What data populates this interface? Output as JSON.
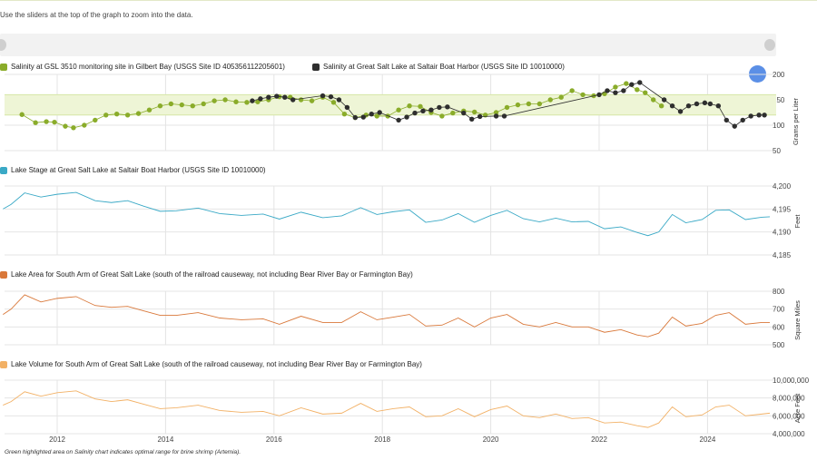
{
  "instruction": "Use the sliders at the top of the graph to zoom into the data.",
  "footnote": "Green highlighted area on Salinity chart indicates optimal range for brine shrimp (Artemia).",
  "colors": {
    "salinity_gilbert": "#8aac2a",
    "salinity_saltair": "#2e2e2e",
    "stage": "#3aa9c6",
    "area": "#d9783a",
    "volume": "#f2b166",
    "optimal_band": "#eef5d6",
    "grid": "#e4e4e4"
  },
  "x_axis": {
    "ticks": [
      "2012",
      "2014",
      "2016",
      "2018",
      "2020",
      "2022",
      "2024"
    ]
  },
  "chart_data": [
    {
      "type": "scatter",
      "title": "",
      "ylabel": "Grams per Liter",
      "ylim": [
        50,
        200
      ],
      "yticks": [
        "200",
        "150",
        "100",
        "50"
      ],
      "optimal_band": [
        120,
        160
      ],
      "series": [
        {
          "name": "Salinity at GSL 3510 monitoring site in Gilbert Bay (USGS Site ID 405356112205601)",
          "x": [
            2011.35,
            2011.6,
            2011.8,
            2011.95,
            2012.15,
            2012.3,
            2012.5,
            2012.7,
            2012.9,
            2013.1,
            2013.3,
            2013.5,
            2013.7,
            2013.9,
            2014.1,
            2014.3,
            2014.5,
            2014.7,
            2014.9,
            2015.1,
            2015.3,
            2015.5,
            2015.7,
            2015.9,
            2016.1,
            2016.3,
            2016.5,
            2016.7,
            2016.9,
            2017.1,
            2017.3,
            2017.5,
            2017.7,
            2017.9,
            2018.1,
            2018.3,
            2018.5,
            2018.7,
            2018.9,
            2019.1,
            2019.3,
            2019.5,
            2019.7,
            2019.9,
            2020.1,
            2020.3,
            2020.5,
            2020.7,
            2020.9,
            2021.1,
            2021.3,
            2021.5,
            2021.7,
            2021.9,
            2022.1,
            2022.3,
            2022.5,
            2022.7,
            2022.85,
            2023.0,
            2023.15
          ],
          "y": [
            121,
            105,
            107,
            106,
            98,
            95,
            100,
            110,
            120,
            122,
            120,
            123,
            130,
            138,
            142,
            140,
            138,
            142,
            148,
            150,
            146,
            145,
            146,
            150,
            156,
            155,
            150,
            148,
            155,
            145,
            122,
            115,
            120,
            118,
            118,
            130,
            138,
            137,
            125,
            118,
            124,
            128,
            126,
            120,
            125,
            135,
            140,
            142,
            142,
            150,
            155,
            168,
            160,
            158,
            162,
            175,
            182,
            170,
            164,
            150,
            138
          ]
        },
        {
          "name": "Salinity at Great Salt Lake at Saltair Boat Harbor (USGS Site ID 10010000)",
          "x": [
            2015.6,
            2015.75,
            2015.9,
            2016.05,
            2016.2,
            2016.35,
            2016.9,
            2017.05,
            2017.2,
            2017.35,
            2017.5,
            2017.65,
            2017.8,
            2017.95,
            2018.3,
            2018.45,
            2018.6,
            2018.75,
            2018.9,
            2019.05,
            2019.2,
            2019.5,
            2019.65,
            2019.8,
            2020.1,
            2020.25,
            2022.0,
            2022.15,
            2022.3,
            2022.45,
            2022.6,
            2022.75,
            2023.2,
            2023.35,
            2023.5,
            2023.65,
            2023.8,
            2023.95,
            2024.05,
            2024.2,
            2024.35,
            2024.5,
            2024.65,
            2024.8,
            2024.95,
            2025.05
          ],
          "y": [
            148,
            152,
            155,
            157,
            155,
            150,
            158,
            156,
            150,
            135,
            115,
            116,
            122,
            125,
            110,
            116,
            124,
            128,
            130,
            135,
            136,
            124,
            112,
            117,
            118,
            118,
            160,
            168,
            164,
            168,
            180,
            184,
            150,
            138,
            127,
            138,
            142,
            144,
            142,
            138,
            110,
            98,
            110,
            118,
            120,
            120
          ]
        }
      ]
    },
    {
      "type": "line",
      "title": "",
      "ylabel": "Feet",
      "ylim": [
        4185,
        4200
      ],
      "yticks": [
        "4,200",
        "4,195",
        "4,190",
        "4,185"
      ],
      "series": [
        {
          "name": "Lake Stage at Great Salt Lake at Saltair Boat Harbor (USGS Site ID 10010000)",
          "x": [
            2011.0,
            2011.15,
            2011.4,
            2011.7,
            2012.0,
            2012.35,
            2012.7,
            2013.0,
            2013.3,
            2013.6,
            2013.9,
            2014.2,
            2014.6,
            2015.0,
            2015.4,
            2015.8,
            2016.1,
            2016.5,
            2016.9,
            2017.25,
            2017.6,
            2017.9,
            2018.2,
            2018.5,
            2018.8,
            2019.1,
            2019.4,
            2019.7,
            2020.0,
            2020.3,
            2020.6,
            2020.9,
            2021.2,
            2021.5,
            2021.8,
            2022.1,
            2022.4,
            2022.7,
            2022.9,
            2023.1,
            2023.35,
            2023.6,
            2023.9,
            2024.15,
            2024.4,
            2024.7,
            2025.0,
            2025.15
          ],
          "y": [
            4195.0,
            4196.0,
            4198.5,
            4197.6,
            4198.2,
            4198.6,
            4196.8,
            4196.4,
            4196.8,
            4195.6,
            4194.5,
            4194.6,
            4195.2,
            4194.0,
            4193.6,
            4193.9,
            4192.8,
            4194.3,
            4193.1,
            4193.5,
            4195.3,
            4193.8,
            4194.4,
            4194.8,
            4192.1,
            4192.6,
            4194.0,
            4192.1,
            4193.6,
            4194.7,
            4192.9,
            4192.2,
            4193.0,
            4192.2,
            4192.3,
            4190.7,
            4191.1,
            4189.9,
            4189.2,
            4190.0,
            4193.8,
            4192.0,
            4192.7,
            4194.7,
            4194.8,
            4192.7,
            4193.2,
            4193.3
          ]
        }
      ]
    },
    {
      "type": "line",
      "title": "",
      "ylabel": "Square Miles",
      "ylim": [
        500,
        800
      ],
      "yticks": [
        "800",
        "700",
        "600",
        "500"
      ],
      "series": [
        {
          "name": "Lake Area for South Arm of Great Salt Lake (south of the railroad causeway, not including Bear River Bay or Farmington Bay)",
          "x": [
            2011.0,
            2011.15,
            2011.4,
            2011.7,
            2012.0,
            2012.35,
            2012.7,
            2013.0,
            2013.3,
            2013.6,
            2013.9,
            2014.2,
            2014.6,
            2015.0,
            2015.4,
            2015.8,
            2016.1,
            2016.5,
            2016.9,
            2017.25,
            2017.6,
            2017.9,
            2018.2,
            2018.5,
            2018.8,
            2019.1,
            2019.4,
            2019.7,
            2020.0,
            2020.3,
            2020.6,
            2020.9,
            2021.2,
            2021.5,
            2021.8,
            2022.1,
            2022.4,
            2022.7,
            2022.9,
            2023.1,
            2023.35,
            2023.6,
            2023.9,
            2024.15,
            2024.4,
            2024.7,
            2025.0,
            2025.15
          ],
          "y": [
            670,
            700,
            780,
            740,
            760,
            770,
            720,
            710,
            715,
            690,
            665,
            665,
            680,
            650,
            640,
            645,
            615,
            660,
            625,
            625,
            685,
            640,
            655,
            670,
            605,
            610,
            650,
            600,
            650,
            670,
            615,
            600,
            625,
            600,
            600,
            570,
            585,
            555,
            545,
            565,
            655,
            605,
            620,
            665,
            680,
            615,
            625,
            625
          ]
        }
      ]
    },
    {
      "type": "line",
      "title": "",
      "ylabel": "Acre Feet",
      "ylim": [
        4000000,
        10000000
      ],
      "yticks": [
        "10,000,000",
        "8,000,000",
        "6,000,000",
        "4,000,000"
      ],
      "series": [
        {
          "name": "Lake Volume for South Arm of Great Salt Lake (south of the railroad causeway, not including Bear River Bay or Farmington Bay)",
          "x": [
            2011.0,
            2011.15,
            2011.4,
            2011.7,
            2012.0,
            2012.35,
            2012.7,
            2013.0,
            2013.3,
            2013.6,
            2013.9,
            2014.2,
            2014.6,
            2015.0,
            2015.4,
            2015.8,
            2016.1,
            2016.5,
            2016.9,
            2017.25,
            2017.6,
            2017.9,
            2018.2,
            2018.5,
            2018.8,
            2019.1,
            2019.4,
            2019.7,
            2020.0,
            2020.3,
            2020.6,
            2020.9,
            2021.2,
            2021.5,
            2021.8,
            2022.1,
            2022.4,
            2022.7,
            2022.9,
            2023.1,
            2023.35,
            2023.6,
            2023.9,
            2024.15,
            2024.4,
            2024.7,
            2025.0,
            2025.15
          ],
          "y": [
            7200000,
            7600000,
            8700000,
            8200000,
            8600000,
            8800000,
            7900000,
            7600000,
            7800000,
            7300000,
            6800000,
            6900000,
            7200000,
            6600000,
            6400000,
            6500000,
            6000000,
            6900000,
            6200000,
            6300000,
            7400000,
            6500000,
            6800000,
            7000000,
            5900000,
            6000000,
            6800000,
            5900000,
            6700000,
            7100000,
            6000000,
            5800000,
            6200000,
            5700000,
            5800000,
            5200000,
            5300000,
            4900000,
            4700000,
            5200000,
            7000000,
            5900000,
            6100000,
            7000000,
            7200000,
            6000000,
            6200000,
            6300000
          ]
        }
      ]
    }
  ]
}
